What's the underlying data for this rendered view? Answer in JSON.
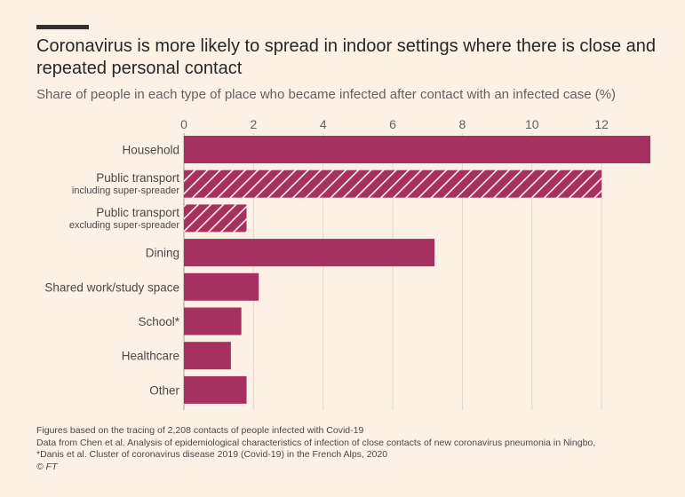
{
  "title": "Coronavirus is more likely to spread in indoor settings where there is close and repeated personal contact",
  "subtitle": "Share of people in each type of place who became infected after contact with an infected case (%)",
  "chart_data": {
    "type": "bar",
    "orientation": "horizontal",
    "xlim": [
      0,
      13.4
    ],
    "xticks": [
      "0",
      "2",
      "4",
      "6",
      "8",
      "10",
      "12"
    ],
    "grid": true,
    "bar_color": "#a6305f",
    "background": "#fdf1e6",
    "categories": [
      {
        "label": "Household",
        "sublabel": "",
        "value": 13.4,
        "hatched": false
      },
      {
        "label": "Public transport",
        "sublabel": "including super-spreader",
        "value": 12.0,
        "hatched": true
      },
      {
        "label": "Public transport",
        "sublabel": "excluding super-spreader",
        "value": 1.8,
        "hatched": true
      },
      {
        "label": "Dining",
        "sublabel": "",
        "value": 7.2,
        "hatched": false
      },
      {
        "label": "Shared work/study space",
        "sublabel": "",
        "value": 2.15,
        "hatched": false
      },
      {
        "label": "School*",
        "sublabel": "",
        "value": 1.65,
        "hatched": false
      },
      {
        "label": "Healthcare",
        "sublabel": "",
        "value": 1.35,
        "hatched": false
      },
      {
        "label": "Other",
        "sublabel": "",
        "value": 1.8,
        "hatched": false
      }
    ]
  },
  "footer": {
    "line1": "Figures based on the tracing of 2,208 contacts of people infected with Covid-19",
    "line2": "Data from Chen et al. Analysis of epidemiological characteristics of infection of close contacts of new coronavirus pneumonia in Ningbo,",
    "line3": "*Danis et al. Cluster of coronavirus disease 2019 (Covid-19) in the French Alps, 2020",
    "line4": "© FT"
  }
}
